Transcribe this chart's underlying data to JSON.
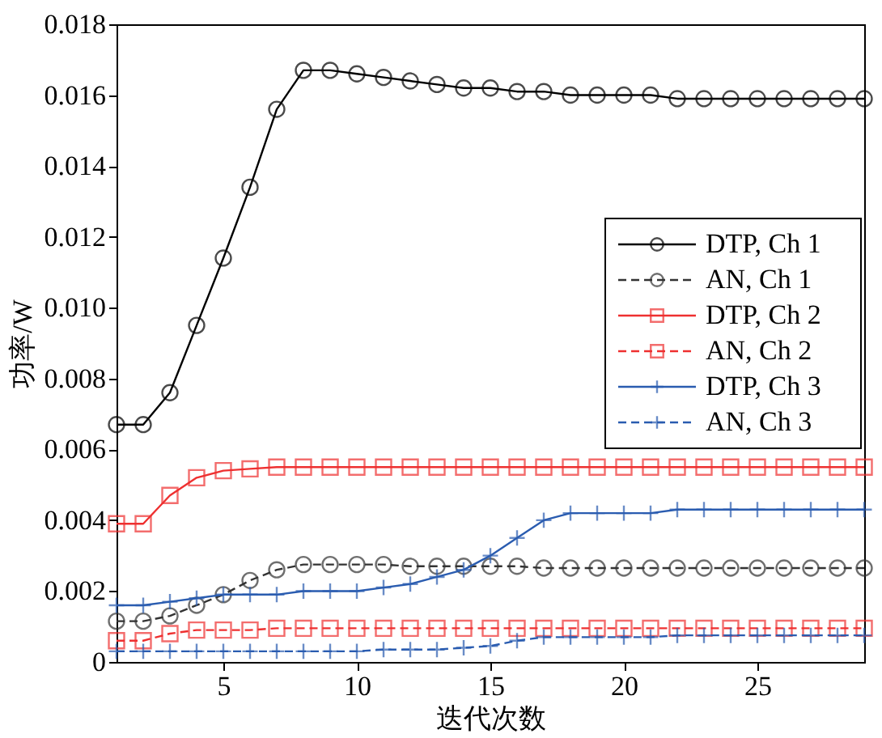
{
  "chart_data": {
    "type": "line",
    "xlabel": "迭代次数",
    "ylabel": "功率/W",
    "x": [
      1,
      2,
      3,
      4,
      5,
      6,
      7,
      8,
      9,
      10,
      11,
      12,
      13,
      14,
      15,
      16,
      17,
      18,
      19,
      20,
      21,
      22,
      23,
      24,
      25,
      26,
      27,
      28,
      29
    ],
    "xlim": [
      1,
      29
    ],
    "xticks": [
      5,
      10,
      15,
      20,
      25
    ],
    "ylim": [
      0,
      0.018
    ],
    "yticks": [
      {
        "value": 0,
        "label": "0"
      },
      {
        "value": 0.002,
        "label": "0.002"
      },
      {
        "value": 0.004,
        "label": "0.004"
      },
      {
        "value": 0.006,
        "label": "0.006"
      },
      {
        "value": 0.008,
        "label": "0.008"
      },
      {
        "value": 0.01,
        "label": "0.010"
      },
      {
        "value": 0.012,
        "label": "0.012"
      },
      {
        "value": 0.014,
        "label": "0.014"
      },
      {
        "value": 0.016,
        "label": "0.016"
      },
      {
        "value": 0.018,
        "label": "0.018"
      }
    ],
    "grid": false,
    "legend": "top right",
    "series": [
      {
        "name": "DTP, Ch 1",
        "color": "#000000",
        "marker": "circle",
        "line_style": "solid",
        "values": [
          0.0067,
          0.0067,
          0.0076,
          0.0095,
          0.0114,
          0.0134,
          0.0156,
          0.0167,
          0.0167,
          0.0166,
          0.0165,
          0.0164,
          0.0163,
          0.0162,
          0.0162,
          0.0161,
          0.0161,
          0.016,
          0.016,
          0.016,
          0.016,
          0.0159,
          0.0159,
          0.0159,
          0.0159,
          0.0159,
          0.0159,
          0.0159,
          0.0159
        ]
      },
      {
        "name": "AN, Ch 1",
        "color": "#333333",
        "marker": "circle",
        "line_style": "dashed",
        "values": [
          0.00115,
          0.00115,
          0.0013,
          0.0016,
          0.0019,
          0.0023,
          0.0026,
          0.00275,
          0.00275,
          0.00275,
          0.00275,
          0.0027,
          0.0027,
          0.0027,
          0.0027,
          0.0027,
          0.00265,
          0.00265,
          0.00265,
          0.00265,
          0.00265,
          0.00265,
          0.00265,
          0.00265,
          0.00265,
          0.00265,
          0.00265,
          0.00265,
          0.00265
        ]
      },
      {
        "name": "DTP, Ch 2",
        "color": "#ee3030",
        "marker": "square",
        "line_style": "solid",
        "values": [
          0.0039,
          0.0039,
          0.0047,
          0.0052,
          0.0054,
          0.00545,
          0.0055,
          0.0055,
          0.0055,
          0.0055,
          0.0055,
          0.0055,
          0.0055,
          0.0055,
          0.0055,
          0.0055,
          0.0055,
          0.0055,
          0.0055,
          0.0055,
          0.0055,
          0.0055,
          0.0055,
          0.0055,
          0.0055,
          0.0055,
          0.0055,
          0.0055,
          0.0055
        ]
      },
      {
        "name": "AN, Ch 2",
        "color": "#ee3030",
        "marker": "square",
        "line_style": "dashed",
        "values": [
          0.0006,
          0.0006,
          0.0008,
          0.0009,
          0.0009,
          0.0009,
          0.00095,
          0.00095,
          0.00095,
          0.00095,
          0.00095,
          0.00095,
          0.00095,
          0.00095,
          0.00095,
          0.00095,
          0.00095,
          0.00095,
          0.00095,
          0.00095,
          0.00095,
          0.00095,
          0.00095,
          0.00095,
          0.00095,
          0.00095,
          0.00095,
          0.00095,
          0.00095
        ]
      },
      {
        "name": "DTP, Ch 3",
        "color": "#2a5cb0",
        "marker": "cross",
        "line_style": "solid",
        "values": [
          0.0016,
          0.0016,
          0.0017,
          0.0018,
          0.0019,
          0.0019,
          0.0019,
          0.002,
          0.002,
          0.002,
          0.0021,
          0.0022,
          0.0024,
          0.0026,
          0.003,
          0.0035,
          0.004,
          0.0042,
          0.0042,
          0.0042,
          0.0042,
          0.0043,
          0.0043,
          0.0043,
          0.0043,
          0.0043,
          0.0043,
          0.0043,
          0.0043
        ]
      },
      {
        "name": "AN, Ch 3",
        "color": "#2a5cb0",
        "marker": "cross",
        "line_style": "dashed",
        "values": [
          0.0003,
          0.0003,
          0.0003,
          0.0003,
          0.0003,
          0.0003,
          0.0003,
          0.0003,
          0.0003,
          0.0003,
          0.00035,
          0.00035,
          0.00035,
          0.0004,
          0.00045,
          0.0006,
          0.0007,
          0.0007,
          0.0007,
          0.0007,
          0.0007,
          0.00075,
          0.00075,
          0.00075,
          0.00075,
          0.00075,
          0.00075,
          0.00075,
          0.00075
        ]
      }
    ]
  }
}
